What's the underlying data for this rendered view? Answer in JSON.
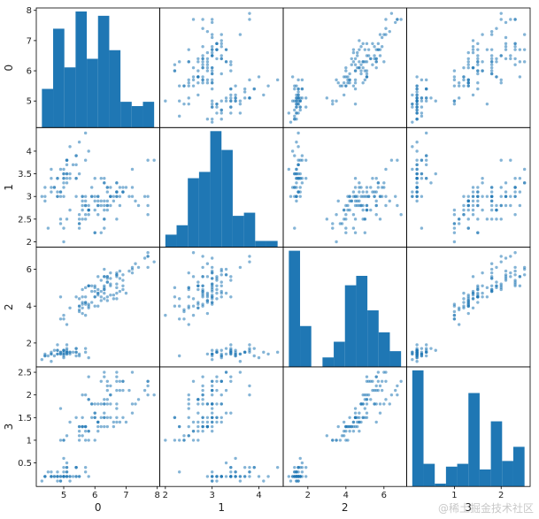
{
  "chart_data": {
    "type": "scatter",
    "variables": [
      "0",
      "1",
      "2",
      "3"
    ],
    "ranges": {
      "0": [
        4.3,
        7.9
      ],
      "1": [
        2.0,
        4.4
      ],
      "2": [
        1.0,
        6.9
      ],
      "3": [
        0.1,
        2.5
      ]
    },
    "ticks": {
      "0": [
        5,
        6,
        7,
        8
      ],
      "1": [
        2.0,
        2.5,
        3.0,
        3.5,
        4.0
      ],
      "2": [
        2,
        4,
        6
      ],
      "3": [
        0.5,
        1.0,
        1.5,
        2.0,
        2.5
      ]
    },
    "x_ticks": {
      "0": [
        5,
        6,
        7,
        8
      ],
      "1": [
        2,
        3,
        4
      ],
      "2": [
        2,
        4,
        6
      ],
      "3": [
        1,
        2
      ]
    },
    "histograms": {
      "0": [
        9,
        23,
        14,
        27,
        16,
        26,
        18,
        6,
        5,
        6
      ],
      "1": [
        4,
        7,
        22,
        24,
        37,
        31,
        10,
        11,
        2,
        2
      ],
      "2": [
        37,
        13,
        0,
        3,
        8,
        26,
        29,
        18,
        11,
        5
      ],
      "3": [
        41,
        8,
        1,
        7,
        8,
        33,
        6,
        23,
        9,
        14
      ]
    },
    "series": [
      {
        "name": "",
        "points": [
          [
            5.1,
            3.5,
            1.4,
            0.2
          ],
          [
            4.9,
            3.0,
            1.4,
            0.2
          ],
          [
            4.7,
            3.2,
            1.3,
            0.2
          ],
          [
            4.6,
            3.1,
            1.5,
            0.2
          ],
          [
            5.0,
            3.6,
            1.4,
            0.2
          ],
          [
            5.4,
            3.9,
            1.7,
            0.4
          ],
          [
            4.6,
            3.4,
            1.4,
            0.3
          ],
          [
            5.0,
            3.4,
            1.5,
            0.2
          ],
          [
            4.4,
            2.9,
            1.4,
            0.2
          ],
          [
            4.9,
            3.1,
            1.5,
            0.1
          ],
          [
            5.4,
            3.7,
            1.5,
            0.2
          ],
          [
            4.8,
            3.4,
            1.6,
            0.2
          ],
          [
            4.8,
            3.0,
            1.4,
            0.1
          ],
          [
            4.3,
            3.0,
            1.1,
            0.1
          ],
          [
            5.8,
            4.0,
            1.2,
            0.2
          ],
          [
            5.7,
            4.4,
            1.5,
            0.4
          ],
          [
            5.4,
            3.9,
            1.3,
            0.4
          ],
          [
            5.1,
            3.5,
            1.4,
            0.3
          ],
          [
            5.7,
            3.8,
            1.7,
            0.3
          ],
          [
            5.1,
            3.8,
            1.5,
            0.3
          ],
          [
            5.4,
            3.4,
            1.7,
            0.2
          ],
          [
            5.1,
            3.7,
            1.5,
            0.4
          ],
          [
            4.6,
            3.6,
            1.0,
            0.2
          ],
          [
            5.1,
            3.3,
            1.7,
            0.5
          ],
          [
            4.8,
            3.4,
            1.9,
            0.2
          ],
          [
            5.0,
            3.0,
            1.6,
            0.2
          ],
          [
            5.0,
            3.4,
            1.6,
            0.4
          ],
          [
            5.2,
            3.5,
            1.5,
            0.2
          ],
          [
            5.2,
            3.4,
            1.4,
            0.2
          ],
          [
            4.7,
            3.2,
            1.6,
            0.2
          ],
          [
            4.8,
            3.1,
            1.6,
            0.2
          ],
          [
            5.4,
            3.4,
            1.5,
            0.4
          ],
          [
            5.2,
            4.1,
            1.5,
            0.1
          ],
          [
            5.5,
            4.2,
            1.4,
            0.2
          ],
          [
            4.9,
            3.1,
            1.5,
            0.2
          ],
          [
            5.0,
            3.2,
            1.2,
            0.2
          ],
          [
            5.5,
            3.5,
            1.3,
            0.2
          ],
          [
            4.9,
            3.6,
            1.4,
            0.1
          ],
          [
            4.4,
            3.0,
            1.3,
            0.2
          ],
          [
            5.1,
            3.4,
            1.5,
            0.2
          ],
          [
            5.0,
            3.5,
            1.3,
            0.3
          ],
          [
            4.5,
            2.3,
            1.3,
            0.3
          ],
          [
            4.4,
            3.2,
            1.3,
            0.2
          ],
          [
            5.0,
            3.5,
            1.6,
            0.6
          ],
          [
            5.1,
            3.8,
            1.9,
            0.4
          ],
          [
            4.8,
            3.0,
            1.4,
            0.3
          ],
          [
            5.1,
            3.8,
            1.6,
            0.2
          ],
          [
            4.6,
            3.2,
            1.4,
            0.2
          ],
          [
            5.3,
            3.7,
            1.5,
            0.2
          ],
          [
            5.0,
            3.3,
            1.4,
            0.2
          ],
          [
            7.0,
            3.2,
            4.7,
            1.4
          ],
          [
            6.4,
            3.2,
            4.5,
            1.5
          ],
          [
            6.9,
            3.1,
            4.9,
            1.5
          ],
          [
            5.5,
            2.3,
            4.0,
            1.3
          ],
          [
            6.5,
            2.8,
            4.6,
            1.5
          ],
          [
            5.7,
            2.8,
            4.5,
            1.3
          ],
          [
            6.3,
            3.3,
            4.7,
            1.6
          ],
          [
            4.9,
            2.4,
            3.3,
            1.0
          ],
          [
            6.6,
            2.9,
            4.6,
            1.3
          ],
          [
            5.2,
            2.7,
            3.9,
            1.4
          ],
          [
            5.0,
            2.0,
            3.5,
            1.0
          ],
          [
            5.9,
            3.0,
            4.2,
            1.5
          ],
          [
            6.0,
            2.2,
            4.0,
            1.0
          ],
          [
            6.1,
            2.9,
            4.7,
            1.4
          ],
          [
            5.6,
            2.9,
            3.6,
            1.3
          ],
          [
            6.7,
            3.1,
            4.4,
            1.4
          ],
          [
            5.6,
            3.0,
            4.5,
            1.5
          ],
          [
            5.8,
            2.7,
            4.1,
            1.0
          ],
          [
            6.2,
            2.2,
            4.5,
            1.5
          ],
          [
            5.6,
            2.5,
            3.9,
            1.1
          ],
          [
            5.9,
            3.2,
            4.8,
            1.8
          ],
          [
            6.1,
            2.8,
            4.0,
            1.3
          ],
          [
            6.3,
            2.5,
            4.9,
            1.5
          ],
          [
            6.1,
            2.8,
            4.7,
            1.2
          ],
          [
            6.4,
            2.9,
            4.3,
            1.3
          ],
          [
            6.6,
            3.0,
            4.4,
            1.4
          ],
          [
            6.8,
            2.8,
            4.8,
            1.4
          ],
          [
            6.7,
            3.0,
            5.0,
            1.7
          ],
          [
            6.0,
            2.9,
            4.5,
            1.5
          ],
          [
            5.7,
            2.6,
            3.5,
            1.0
          ],
          [
            5.5,
            2.4,
            3.8,
            1.1
          ],
          [
            5.5,
            2.4,
            3.7,
            1.0
          ],
          [
            5.8,
            2.7,
            3.9,
            1.2
          ],
          [
            6.0,
            2.7,
            5.1,
            1.6
          ],
          [
            5.4,
            3.0,
            4.5,
            1.5
          ],
          [
            6.0,
            3.4,
            4.5,
            1.6
          ],
          [
            6.7,
            3.1,
            4.7,
            1.5
          ],
          [
            6.3,
            2.3,
            4.4,
            1.3
          ],
          [
            5.6,
            3.0,
            4.1,
            1.3
          ],
          [
            5.5,
            2.5,
            4.0,
            1.3
          ],
          [
            5.5,
            2.6,
            4.4,
            1.2
          ],
          [
            6.1,
            3.0,
            4.6,
            1.4
          ],
          [
            5.8,
            2.6,
            4.0,
            1.2
          ],
          [
            5.0,
            2.3,
            3.3,
            1.0
          ],
          [
            5.6,
            2.7,
            4.2,
            1.3
          ],
          [
            5.7,
            3.0,
            4.2,
            1.2
          ],
          [
            5.7,
            2.9,
            4.2,
            1.3
          ],
          [
            6.2,
            2.9,
            4.3,
            1.3
          ],
          [
            5.1,
            2.5,
            3.0,
            1.1
          ],
          [
            5.7,
            2.8,
            4.1,
            1.3
          ],
          [
            6.3,
            3.3,
            6.0,
            2.5
          ],
          [
            5.8,
            2.7,
            5.1,
            1.9
          ],
          [
            7.1,
            3.0,
            5.9,
            2.1
          ],
          [
            6.3,
            2.9,
            5.6,
            1.8
          ],
          [
            6.5,
            3.0,
            5.8,
            2.2
          ],
          [
            7.6,
            3.0,
            6.6,
            2.1
          ],
          [
            4.9,
            2.5,
            4.5,
            1.7
          ],
          [
            7.3,
            2.9,
            6.3,
            1.8
          ],
          [
            6.7,
            2.5,
            5.8,
            1.8
          ],
          [
            7.2,
            3.6,
            6.1,
            2.5
          ],
          [
            6.5,
            3.2,
            5.1,
            2.0
          ],
          [
            6.4,
            2.7,
            5.3,
            1.9
          ],
          [
            6.8,
            3.0,
            5.5,
            2.1
          ],
          [
            5.7,
            2.5,
            5.0,
            2.0
          ],
          [
            5.8,
            2.8,
            5.1,
            2.4
          ],
          [
            6.4,
            3.2,
            5.3,
            2.3
          ],
          [
            6.5,
            3.0,
            5.5,
            1.8
          ],
          [
            7.7,
            3.8,
            6.7,
            2.2
          ],
          [
            7.7,
            2.6,
            6.9,
            2.3
          ],
          [
            6.0,
            2.2,
            5.0,
            1.5
          ],
          [
            6.9,
            3.2,
            5.7,
            2.3
          ],
          [
            5.6,
            2.8,
            4.9,
            2.0
          ],
          [
            7.7,
            2.8,
            6.7,
            2.0
          ],
          [
            6.3,
            2.7,
            4.9,
            1.8
          ],
          [
            6.7,
            3.3,
            5.7,
            2.1
          ],
          [
            7.2,
            3.2,
            6.0,
            1.8
          ],
          [
            6.2,
            2.8,
            4.8,
            1.8
          ],
          [
            6.1,
            3.0,
            4.9,
            1.8
          ],
          [
            6.4,
            2.8,
            5.6,
            2.1
          ],
          [
            7.2,
            3.0,
            5.8,
            1.6
          ],
          [
            7.4,
            2.8,
            6.1,
            1.9
          ],
          [
            7.9,
            3.8,
            6.4,
            2.0
          ],
          [
            6.4,
            2.8,
            5.6,
            2.2
          ],
          [
            6.3,
            2.8,
            5.1,
            1.5
          ],
          [
            6.1,
            2.6,
            5.6,
            1.4
          ],
          [
            7.7,
            3.0,
            6.1,
            2.3
          ],
          [
            6.3,
            3.4,
            5.6,
            2.4
          ],
          [
            6.4,
            3.1,
            5.5,
            1.8
          ],
          [
            6.0,
            3.0,
            4.8,
            1.8
          ],
          [
            6.9,
            3.1,
            5.4,
            2.1
          ],
          [
            6.7,
            3.1,
            5.6,
            2.4
          ],
          [
            6.9,
            3.1,
            5.1,
            2.3
          ],
          [
            5.8,
            2.7,
            5.1,
            1.9
          ],
          [
            6.8,
            3.2,
            5.9,
            2.3
          ],
          [
            6.7,
            3.3,
            5.7,
            2.5
          ],
          [
            6.7,
            3.0,
            5.2,
            2.3
          ],
          [
            6.3,
            2.5,
            5.0,
            1.9
          ],
          [
            6.5,
            3.0,
            5.2,
            2.0
          ],
          [
            6.2,
            3.4,
            5.4,
            2.3
          ],
          [
            5.9,
            3.0,
            5.1,
            1.8
          ]
        ]
      }
    ],
    "colors": {
      "points": "#1f77b4",
      "bars": "#1f77b4"
    },
    "grid": false
  },
  "watermark": "@稀土掘金技术社区"
}
